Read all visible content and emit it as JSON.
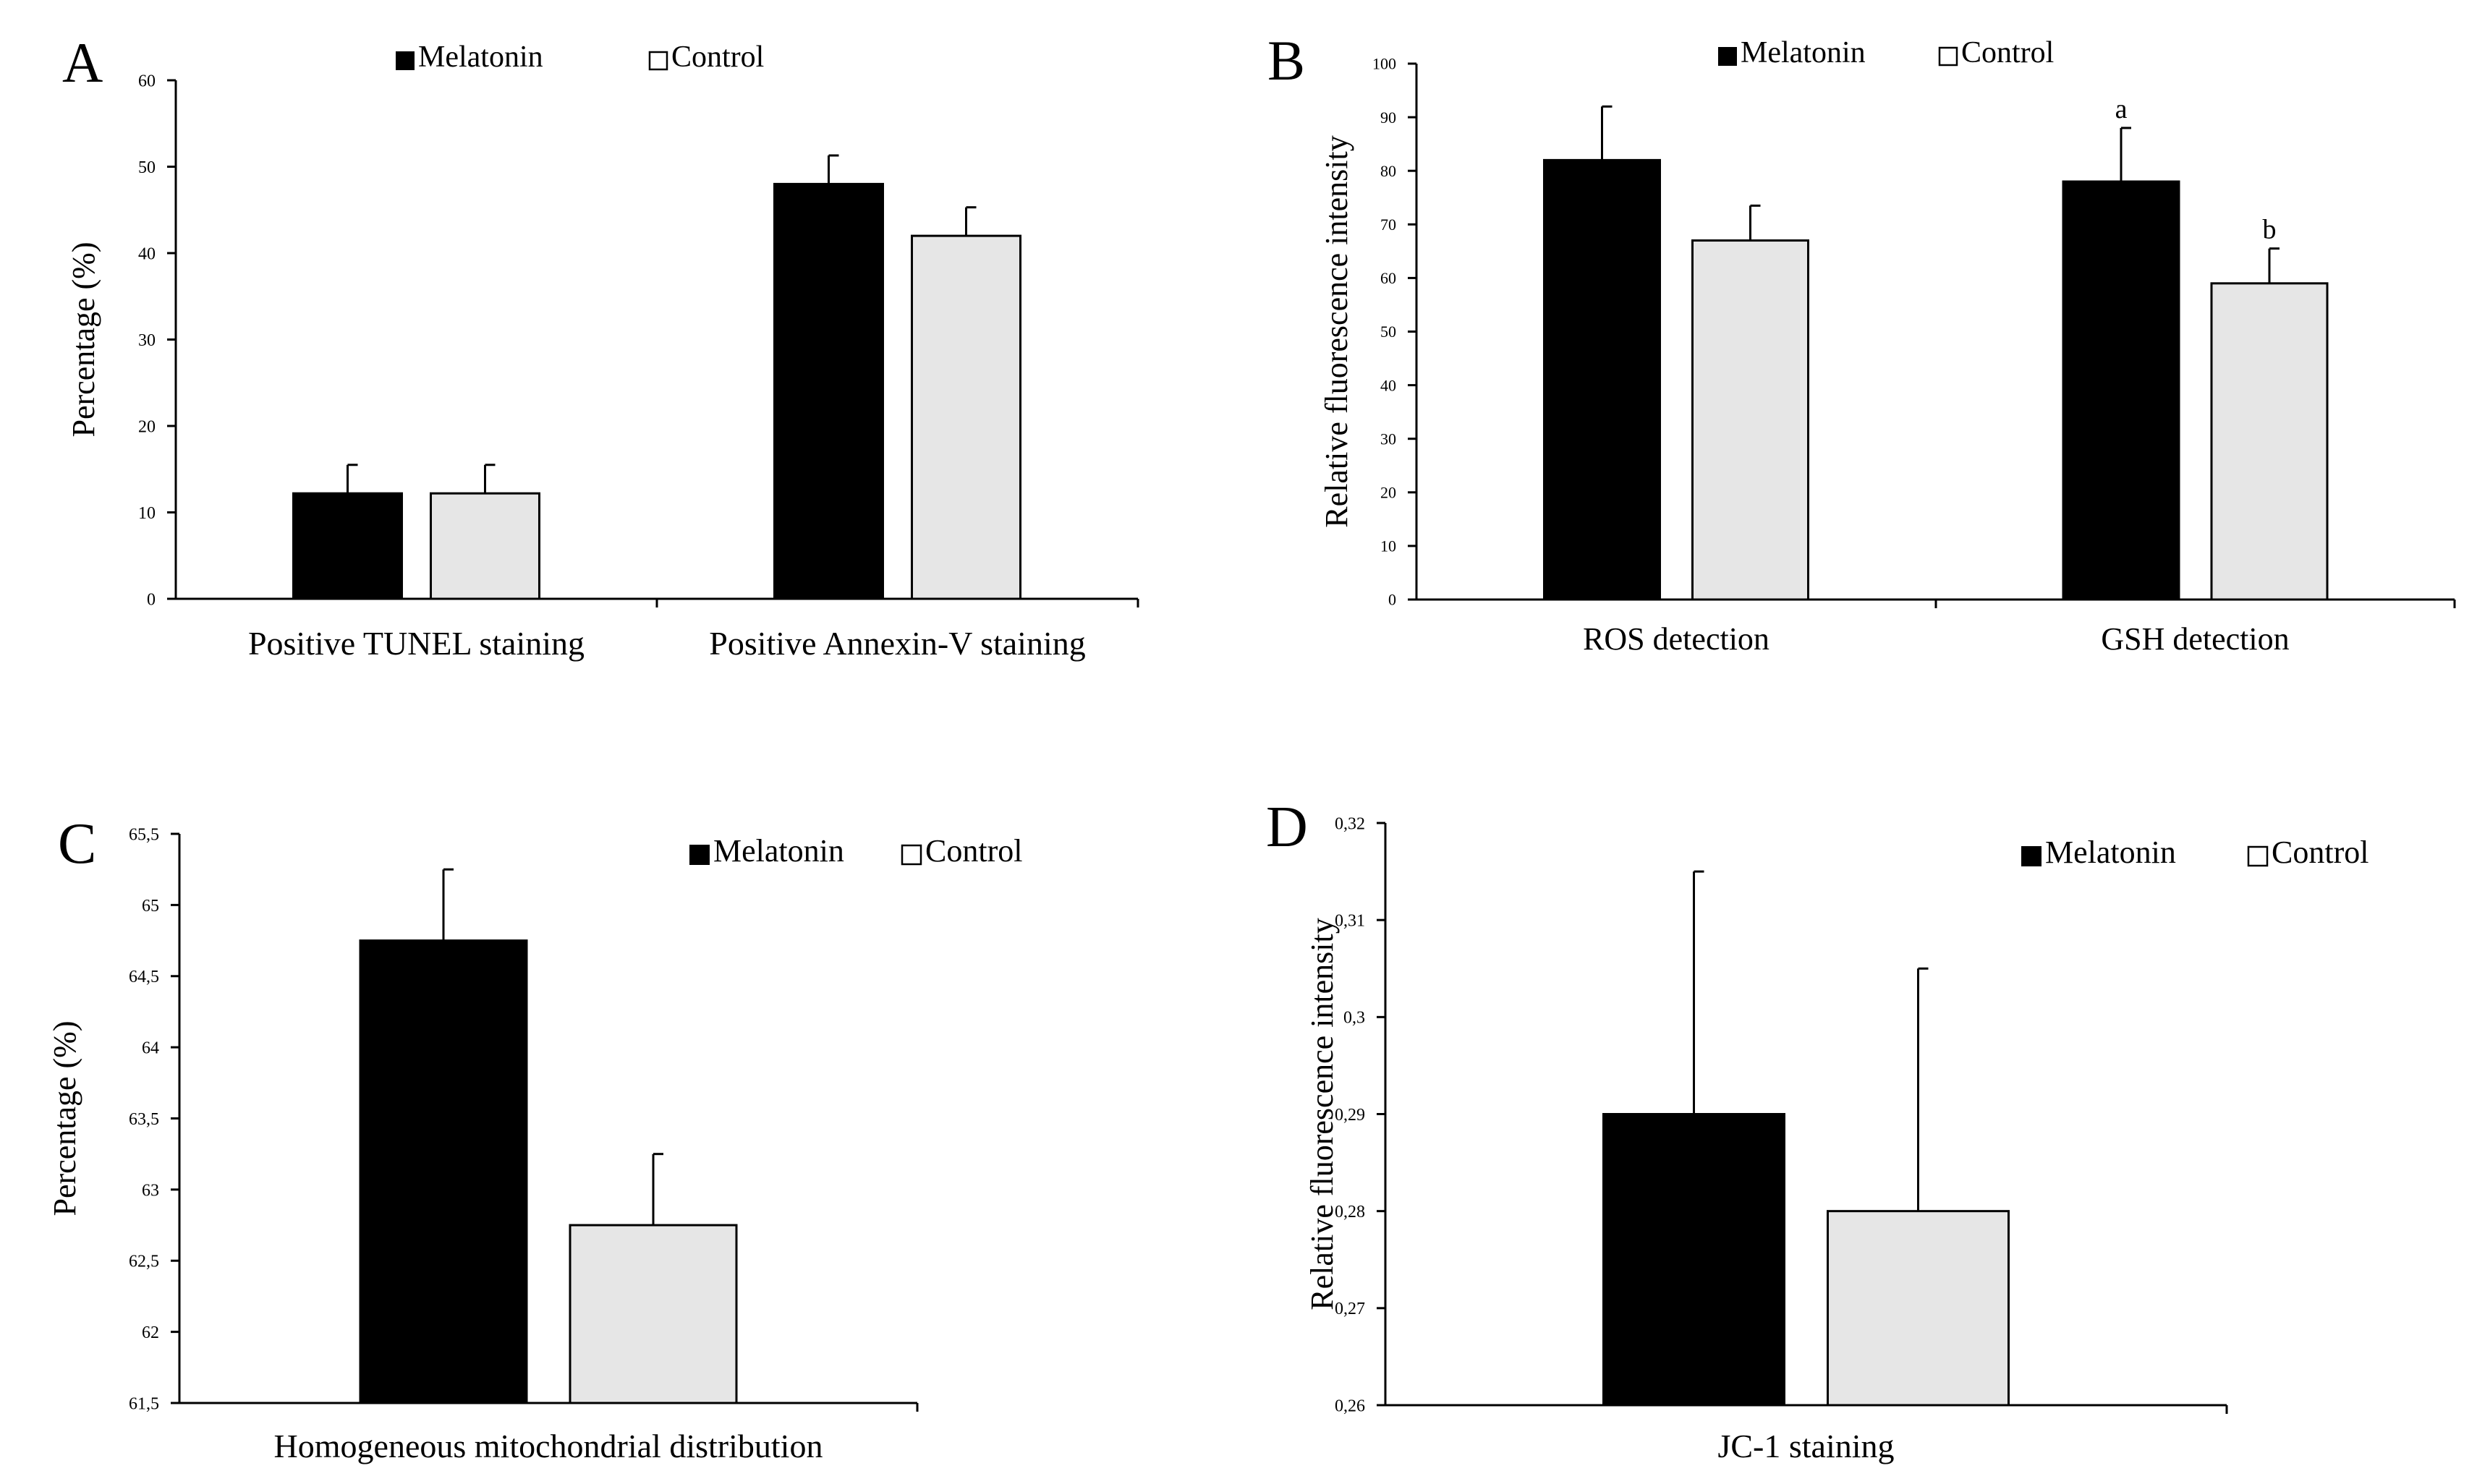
{
  "colors": {
    "melatonin": "#000000",
    "control": "#e6e6e6",
    "axis": "#000000"
  },
  "legend": {
    "melatonin_label": "Melatonin",
    "control_label": "Control"
  },
  "chart_data": [
    {
      "type": "bar",
      "panel_label": "A",
      "ylabel": "Percentage  (%)",
      "xlabel": "",
      "categories": [
        "Positive TUNEL staining",
        "Positive Annexin-V staining"
      ],
      "series": [
        {
          "name": "Melatonin",
          "values": [
            12.2,
            48
          ],
          "errors": [
            3.3,
            3.3
          ]
        },
        {
          "name": "Control",
          "values": [
            12.2,
            42
          ],
          "errors": [
            3.3,
            3.3
          ]
        }
      ],
      "ylim": [
        0,
        60
      ],
      "yticks": [
        0,
        10,
        20,
        30,
        40,
        50,
        60
      ],
      "ytick_labels": [
        "0",
        "10",
        "20",
        "30",
        "40",
        "50",
        "60"
      ],
      "annotations": [],
      "legend_position": "top-center"
    },
    {
      "type": "bar",
      "panel_label": "B",
      "ylabel": "Relative fluorescence  intensity",
      "xlabel": "",
      "categories": [
        "ROS detection",
        "GSH detection"
      ],
      "series": [
        {
          "name": "Melatonin",
          "values": [
            82,
            78
          ],
          "errors": [
            10,
            10
          ]
        },
        {
          "name": "Control",
          "values": [
            67,
            59
          ],
          "errors": [
            6.5,
            6.5
          ]
        }
      ],
      "ylim": [
        0,
        100
      ],
      "yticks": [
        0,
        10,
        20,
        30,
        40,
        50,
        60,
        70,
        80,
        90,
        100
      ],
      "ytick_labels": [
        "0",
        "10",
        "20",
        "30",
        "40",
        "50",
        "60",
        "70",
        "80",
        "90",
        "100"
      ],
      "annotations": [
        {
          "category": 1,
          "series": 0,
          "text": "a"
        },
        {
          "category": 1,
          "series": 1,
          "text": "b"
        }
      ],
      "legend_position": "top-center"
    },
    {
      "type": "bar",
      "panel_label": "C",
      "ylabel": "Percentage  (%)",
      "xlabel": "Homogeneous mitochondrial distribution",
      "categories": [
        ""
      ],
      "series": [
        {
          "name": "Melatonin",
          "values": [
            64.75
          ],
          "errors": [
            0.5
          ]
        },
        {
          "name": "Control",
          "values": [
            62.75
          ],
          "errors": [
            0.5
          ]
        }
      ],
      "ylim": [
        61.5,
        65.5
      ],
      "yticks": [
        61.5,
        62,
        62.5,
        63,
        63.5,
        64,
        64.5,
        65,
        65.5
      ],
      "ytick_labels": [
        "61,5",
        "62",
        "62,5",
        "63",
        "63,5",
        "64",
        "64,5",
        "65",
        "65,5"
      ],
      "annotations": [],
      "legend_position": "top-right"
    },
    {
      "type": "bar",
      "panel_label": "D",
      "ylabel": "Relative fluorescence  intensity",
      "xlabel": "JC-1 staining",
      "categories": [
        ""
      ],
      "series": [
        {
          "name": "Melatonin",
          "values": [
            0.29
          ],
          "errors": [
            0.025
          ]
        },
        {
          "name": "Control",
          "values": [
            0.28
          ],
          "errors": [
            0.025
          ]
        }
      ],
      "ylim": [
        0.26,
        0.32
      ],
      "yticks": [
        0.26,
        0.27,
        0.28,
        0.29,
        0.3,
        0.31,
        0.32
      ],
      "ytick_labels": [
        "0,26",
        "0,27",
        "0,28",
        "0,29",
        "0,3",
        "0,31",
        "0,32"
      ],
      "annotations": [],
      "legend_position": "top-right"
    }
  ]
}
